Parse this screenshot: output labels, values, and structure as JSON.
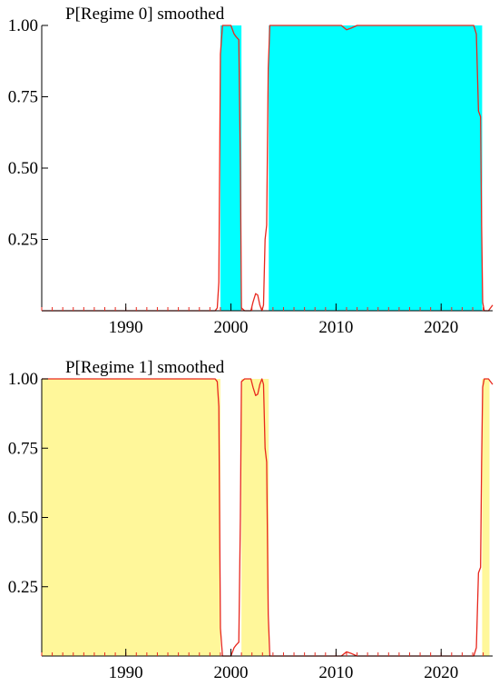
{
  "chart_data": [
    {
      "type": "area",
      "title": "P[Regime 0] smoothed",
      "xlabel": "",
      "ylabel": "",
      "xlim": [
        1982,
        2024.9
      ],
      "ylim": [
        0,
        1
      ],
      "xticks": [
        1990,
        2000,
        2010,
        2020
      ],
      "xtick_labels": [
        "1990",
        "2000",
        "2010",
        "2020"
      ],
      "yticks": [
        0.25,
        0.5,
        0.75,
        1.0
      ],
      "ytick_labels": [
        "0.25",
        "0.50",
        "0.75",
        "1.00"
      ],
      "shade_color": "#00ffff",
      "line_color": "#e8281e",
      "shaded_periods": [
        [
          1999.0,
          2001.0
        ],
        [
          2003.6,
          2023.9
        ]
      ],
      "x": [
        1982,
        1998.5,
        1998.7,
        1998.85,
        1999.0,
        1999.2,
        1999.5,
        2000.0,
        2000.3,
        2000.5,
        2000.75,
        2000.9,
        2001.0,
        2001.3,
        2001.6,
        2001.9,
        2002.1,
        2002.35,
        2002.55,
        2002.75,
        2002.95,
        2003.1,
        2003.25,
        2003.4,
        2003.55,
        2003.7,
        2004.0,
        2006.0,
        2008.0,
        2009.5,
        2010.5,
        2011.0,
        2011.4,
        2012.0,
        2015.0,
        2018.0,
        2021.0,
        2023.1,
        2023.35,
        2023.55,
        2023.75,
        2023.85,
        2023.95,
        2024.1,
        2024.5,
        2024.9
      ],
      "y": [
        0.0,
        0.0,
        0.01,
        0.1,
        0.9,
        1.0,
        1.0,
        1.0,
        0.97,
        0.96,
        0.95,
        0.5,
        0.01,
        0.0,
        0.0,
        0.0,
        0.03,
        0.06,
        0.055,
        0.02,
        0.0,
        0.02,
        0.25,
        0.3,
        0.85,
        1.0,
        1.0,
        1.0,
        1.0,
        1.0,
        1.0,
        0.985,
        0.99,
        1.0,
        1.0,
        1.0,
        1.0,
        1.0,
        0.97,
        0.7,
        0.68,
        0.3,
        0.03,
        0.0,
        0.0,
        0.02
      ]
    },
    {
      "type": "area",
      "title": "P[Regime 1] smoothed",
      "xlabel": "",
      "ylabel": "",
      "xlim": [
        1982,
        2024.9
      ],
      "ylim": [
        0,
        1
      ],
      "xticks": [
        1990,
        2000,
        2010,
        2020
      ],
      "xtick_labels": [
        "1990",
        "2000",
        "2010",
        "2020"
      ],
      "yticks": [
        0.25,
        0.5,
        0.75,
        1.0
      ],
      "ytick_labels": [
        "0.25",
        "0.50",
        "0.75",
        "1.00"
      ],
      "shade_color": "#fff79a",
      "line_color": "#e8281e",
      "shaded_periods": [
        [
          1982.0,
          1999.0
        ],
        [
          2001.0,
          2003.6
        ],
        [
          2023.9,
          2024.6
        ]
      ],
      "x": [
        1982,
        1998.0,
        1998.5,
        1998.7,
        1998.85,
        1999.0,
        1999.2,
        1999.5,
        2000.0,
        2000.3,
        2000.5,
        2000.75,
        2000.9,
        2001.0,
        2001.3,
        2001.6,
        2001.9,
        2002.1,
        2002.35,
        2002.55,
        2002.75,
        2002.95,
        2003.1,
        2003.25,
        2003.4,
        2003.55,
        2003.7,
        2004.0,
        2006.0,
        2008.0,
        2010.5,
        2011.0,
        2011.4,
        2012.0,
        2015.0,
        2018.0,
        2021.0,
        2023.1,
        2023.35,
        2023.55,
        2023.75,
        2023.85,
        2023.95,
        2024.1,
        2024.5,
        2024.9
      ],
      "y": [
        1.0,
        1.0,
        1.0,
        0.99,
        0.9,
        0.1,
        0.0,
        0.0,
        0.0,
        0.03,
        0.04,
        0.05,
        0.5,
        0.99,
        1.0,
        1.0,
        1.0,
        0.97,
        0.94,
        0.945,
        0.98,
        1.0,
        0.98,
        0.75,
        0.7,
        0.15,
        0.0,
        0.0,
        0.0,
        0.0,
        0.0,
        0.015,
        0.01,
        0.0,
        0.0,
        0.0,
        0.0,
        0.0,
        0.03,
        0.3,
        0.32,
        0.7,
        0.97,
        1.0,
        1.0,
        0.98
      ]
    }
  ]
}
